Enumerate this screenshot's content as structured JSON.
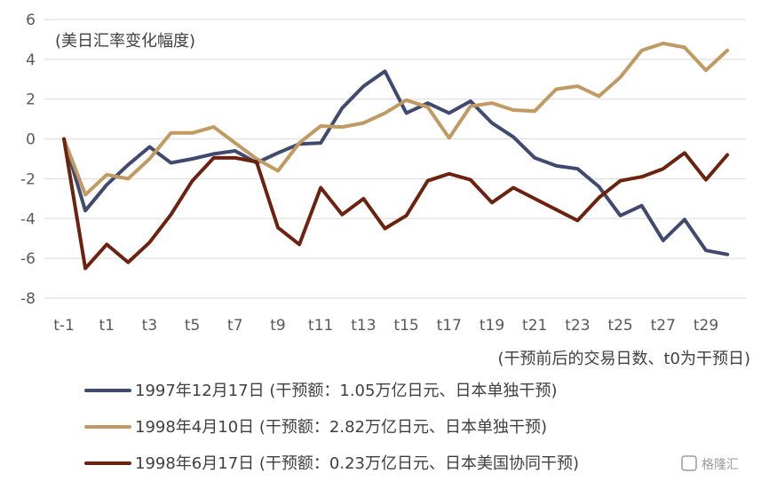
{
  "chart_data": {
    "type": "line",
    "ylabel": "(美日汇率变化幅度)",
    "xlabel": "(干预前后的交易日数、t0为干预日)",
    "ylim": [
      -8,
      6
    ],
    "yticks": [
      6,
      4,
      2,
      0,
      -2,
      -4,
      -6,
      -8
    ],
    "xlim": [
      -1,
      30
    ],
    "x": [
      -1,
      0,
      1,
      2,
      3,
      4,
      5,
      6,
      7,
      8,
      9,
      10,
      11,
      12,
      13,
      14,
      15,
      16,
      17,
      18,
      19,
      20,
      21,
      22,
      23,
      24,
      25,
      26,
      27,
      28,
      29,
      30
    ],
    "xtick_values": [
      -1,
      1,
      3,
      5,
      7,
      9,
      11,
      13,
      15,
      17,
      19,
      21,
      23,
      25,
      27,
      29
    ],
    "xtick_labels": [
      "t-1",
      "t1",
      "t3",
      "t5",
      "t7",
      "t9",
      "t11",
      "t13",
      "t15",
      "t17",
      "t19",
      "t21",
      "t23",
      "t25",
      "t27",
      "t29"
    ],
    "grid": true,
    "legend_position": "bottom",
    "series": [
      {
        "name": "1997年12月17日 (干预额：1.05万亿日元、日本单独干预)",
        "color": "#404a70",
        "values": [
          0,
          -3.6,
          -2.3,
          -1.3,
          -0.4,
          -1.2,
          -1.0,
          -0.75,
          -0.6,
          -1.2,
          -0.7,
          -0.25,
          -0.2,
          1.55,
          2.65,
          3.4,
          1.3,
          1.8,
          1.3,
          1.9,
          0.8,
          0.1,
          -0.95,
          -1.35,
          -1.5,
          -2.4,
          -3.85,
          -3.35,
          -5.1,
          -4.05,
          -5.6,
          -5.8
        ]
      },
      {
        "name": "1998年4月10日 (干预额：2.82万亿日元、日本单独干预)",
        "color": "#c09a62",
        "values": [
          0,
          -2.8,
          -1.8,
          -2.0,
          -1.0,
          0.3,
          0.3,
          0.6,
          -0.2,
          -1.0,
          -1.6,
          -0.2,
          0.65,
          0.6,
          0.8,
          1.3,
          1.95,
          1.6,
          0.05,
          1.65,
          1.8,
          1.45,
          1.4,
          2.5,
          2.65,
          2.15,
          3.1,
          4.45,
          4.8,
          4.6,
          3.45,
          4.45
        ]
      },
      {
        "name": "1998年6月17日 (干预额：0.23万亿日元、日本美国协同干预)",
        "color": "#6b2310",
        "values": [
          0,
          -6.5,
          -5.3,
          -6.2,
          -5.2,
          -3.8,
          -2.1,
          -0.95,
          -0.95,
          -1.15,
          -4.45,
          -5.3,
          -2.45,
          -3.8,
          -3.0,
          -4.5,
          -3.85,
          -2.1,
          -1.75,
          -2.05,
          -3.2,
          -2.45,
          -3.0,
          -3.55,
          -4.1,
          -2.95,
          -2.1,
          -1.9,
          -1.5,
          -0.7,
          -2.05,
          -0.8
        ]
      }
    ]
  },
  "watermark": "格隆汇"
}
